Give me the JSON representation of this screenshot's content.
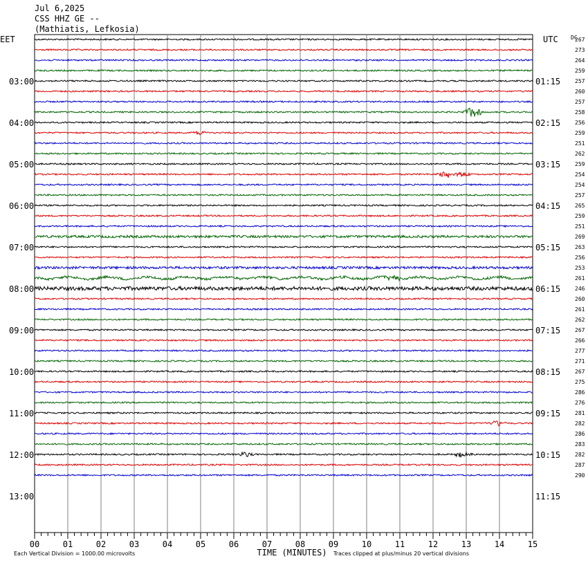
{
  "header": {
    "date": "Jul 6,2025",
    "station": "CSS HHZ GE --",
    "location": "(Mathiatis, Lefkosia)"
  },
  "axes": {
    "left_tz": "EET",
    "right_tz": "UTC",
    "dc_label": "DC",
    "xlabel": "TIME (MINUTES)",
    "x_ticks": [
      "00",
      "01",
      "02",
      "03",
      "04",
      "05",
      "06",
      "07",
      "08",
      "09",
      "10",
      "11",
      "12",
      "13",
      "14",
      "15"
    ],
    "left_hour_labels": [
      "03:00",
      "04:00",
      "05:00",
      "06:00",
      "07:00",
      "08:00",
      "09:00",
      "10:00",
      "11:00",
      "12:00",
      "13:00"
    ],
    "right_hour_labels": [
      "01:15",
      "02:15",
      "03:15",
      "04:15",
      "05:15",
      "06:15",
      "07:15",
      "08:15",
      "09:15",
      "10:15",
      "11:15"
    ]
  },
  "footer": {
    "scale_note": "Each Vertical Division = 1000.00 microvolts",
    "clip_note": "Traces clipped at plus/minus 20 vertical divisions"
  },
  "colors": {
    "trace_cycle": [
      "#000000",
      "#e00000",
      "#0000d0",
      "#006400"
    ],
    "grid": "#808080"
  },
  "chart_data": {
    "type": "line",
    "title": "",
    "x_range_minutes": [
      0,
      15
    ],
    "trace_interval_minutes": 15,
    "dc_offsets": [
      267,
      273,
      264,
      259,
      257,
      260,
      257,
      258,
      256,
      259,
      251,
      262,
      259,
      254,
      254,
      257,
      265,
      259,
      251,
      269,
      263,
      256,
      253,
      261,
      246,
      260,
      261,
      262,
      267,
      266,
      277,
      271,
      267,
      275,
      286,
      276,
      281,
      282,
      286,
      283,
      282,
      287,
      290
    ],
    "events": [
      {
        "trace": 7,
        "minute": 13.2,
        "amplitude": 10
      },
      {
        "trace": 13,
        "minute": 12.4,
        "amplitude": 6
      },
      {
        "trace": 13,
        "minute": 12.9,
        "amplitude": 4
      },
      {
        "trace": 23,
        "minute": 10.8,
        "amplitude": 5
      },
      {
        "trace": 40,
        "minute": 6.4,
        "amplitude": 4
      },
      {
        "trace": 40,
        "minute": 12.9,
        "amplitude": 4
      },
      {
        "trace": 37,
        "minute": 13.9,
        "amplitude": 5
      },
      {
        "trace": 9,
        "minute": 5.0,
        "amplitude": 3
      }
    ]
  }
}
